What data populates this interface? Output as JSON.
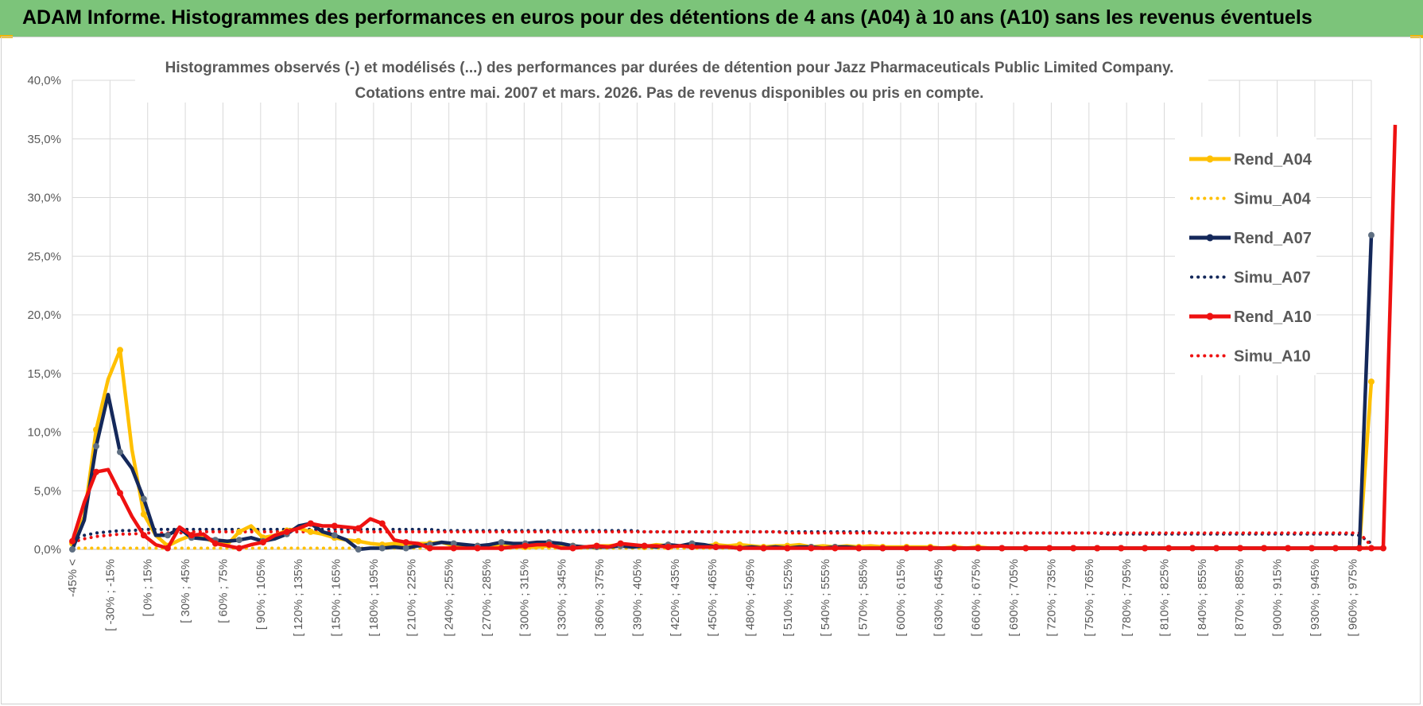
{
  "header": {
    "title": "ADAM Informe. Histogrammes des performances en euros pour des détentions de 4 ans (A04) à 10 ans (A10) sans les revenus éventuels"
  },
  "colors": {
    "banner": "#7cc47a",
    "accent": "#f2b600",
    "a04": "#ffc000",
    "a07": "#14285a",
    "a10": "#ee1111",
    "marker_a07": "#5f6f82"
  },
  "chart_data": {
    "type": "line",
    "title": "Histogrammes observés (-) et modélisés (...) des performances par durées de détention pour Jazz Pharmaceuticals Public Limited Company.",
    "subtitle": "Cotations entre mai. 2007 et mars. 2026. Pas de revenus disponibles ou pris en compte.",
    "ylim": [
      0,
      40
    ],
    "yticks": [
      "0,0%",
      "5,0%",
      "10,0%",
      "15,0%",
      "20,0%",
      "25,0%",
      "30,0%",
      "35,0%",
      "40,0%"
    ],
    "x_tick_labels": [
      "-45% <",
      "[ -30% ; -15%",
      "[ 0% ; 15%",
      "[ 30% ; 45%",
      "[ 60% ; 75%",
      "[ 90% ; 105%",
      "[ 120% ; 135%",
      "[ 150% ; 165%",
      "[ 180% ; 195%",
      "[ 210% ; 225%",
      "[ 240% ; 255%",
      "[ 270% ; 285%",
      "[ 300% ; 315%",
      "[ 330% ; 345%",
      "[ 360% ; 375%",
      "[ 390% ; 405%",
      "[ 420% ; 435%",
      "[ 450% ; 465%",
      "[ 480% ; 495%",
      "[ 510% ; 525%",
      "[ 540% ; 555%",
      "[ 570% ; 585%",
      "[ 600% ; 615%",
      "[ 630% ; 645%",
      "[ 660% ; 675%",
      "[ 690% ; 705%",
      "[ 720% ; 735%",
      "[ 750% ; 765%",
      "[ 780% ; 795%",
      "[ 810% ; 825%",
      "[ 840% ; 855%",
      "[ 870% ; 885%",
      "[ 900% ; 915%",
      "[ 930% ; 945%",
      "[ 960% ; 975%"
    ],
    "grid": true,
    "legend_position": "right",
    "series": [
      {
        "name": "Rend_A04",
        "style": "solid",
        "color": "#ffc000",
        "values": [
          0.5,
          2.8,
          10.2,
          14.5,
          17.0,
          8.5,
          3.0,
          1.2,
          0.3,
          0.8,
          1.2,
          1.0,
          0.6,
          0.4,
          1.5,
          2.0,
          1.0,
          1.2,
          1.6,
          1.8,
          1.5,
          1.3,
          1.0,
          0.8,
          0.7,
          0.5,
          0.4,
          0.5,
          0.4,
          0.5,
          0.5,
          0.6,
          0.3,
          0.2,
          0.3,
          0.2,
          0.3,
          0.2,
          0.2,
          0.2,
          0.3,
          0.2,
          0.3,
          0.2,
          0.3,
          0.3,
          0.4,
          0.3,
          0.2,
          0.4,
          0.3,
          0.3,
          0.4,
          0.3,
          0.4,
          0.3,
          0.4,
          0.3,
          0.2,
          0.3,
          0.3,
          0.4,
          0.2,
          0.3,
          0.2,
          0.3,
          0.2,
          0.3,
          0.2,
          0.2,
          0.2,
          0.2,
          0.2,
          0.1,
          0.2,
          0.1,
          0.2,
          0.1,
          0.1,
          0.1,
          0.1,
          0.1,
          0.1,
          0.1,
          0.1,
          0.1,
          0.1,
          0.1,
          0.1,
          0.1,
          0.1,
          0.1,
          0.1,
          0.1,
          0.1,
          0.1,
          0.1,
          0.1,
          0.1,
          0.1,
          0.1,
          0.1,
          0.1,
          0.1,
          0.1,
          0.1,
          0.1,
          0.1,
          0.1,
          14.3
        ]
      },
      {
        "name": "Simu_A04",
        "style": "dotted",
        "color": "#ffc000",
        "values": [
          0.1,
          0.1,
          0.1,
          0.1,
          0.1,
          0.1,
          0.1,
          0.1,
          0.1,
          0.1,
          0.1,
          0.1,
          0.1,
          0.1,
          0.1,
          0.1,
          0.1,
          0.1,
          0.1,
          0.1,
          0.1,
          0.1,
          0.1,
          0.1,
          0.1,
          0.1,
          0.1,
          0.1,
          0.1,
          0.1,
          0.1,
          0.1,
          0.1,
          0.1,
          0.1,
          0.1,
          0.1,
          0.1,
          0.1,
          0.1,
          0.1,
          0.1,
          0.1,
          0.1,
          0.1,
          0.1,
          0.1,
          0.1,
          0.1,
          0.1,
          0.1,
          0.1,
          0.1,
          0.1,
          0.1,
          0.1,
          0.1,
          0.1,
          0.1,
          0.1,
          0.1,
          0.1,
          0.1,
          0.1,
          0.1,
          0.1,
          0.1,
          0.1,
          0.1,
          0.1,
          0.1,
          0.1,
          0.1,
          0.1,
          0.1,
          0.1,
          0.1,
          0.1,
          0.1,
          0.1,
          0.1,
          0.1,
          0.1,
          0.1,
          0.1,
          0.1,
          0.1,
          0.1,
          0.1,
          0.1,
          0.1,
          0.1,
          0.1,
          0.1,
          0.1,
          0.1,
          0.1,
          0.1,
          0.1,
          0.1,
          0.1,
          0.1,
          0.1,
          0.1,
          0.1,
          0.1,
          0.1,
          0.1,
          0.1,
          0.2
        ]
      },
      {
        "name": "Rend_A07",
        "style": "solid",
        "color": "#14285a",
        "values": [
          0.0,
          2.5,
          8.8,
          13.2,
          8.3,
          6.9,
          4.3,
          1.2,
          1.2,
          1.8,
          1.0,
          0.9,
          0.8,
          0.7,
          0.8,
          1.0,
          0.7,
          0.9,
          1.3,
          2.0,
          2.2,
          1.5,
          1.2,
          0.8,
          0.0,
          0.1,
          0.1,
          0.2,
          0.1,
          0.3,
          0.4,
          0.6,
          0.5,
          0.4,
          0.3,
          0.4,
          0.6,
          0.5,
          0.5,
          0.6,
          0.6,
          0.5,
          0.3,
          0.2,
          0.2,
          0.2,
          0.3,
          0.2,
          0.3,
          0.2,
          0.4,
          0.3,
          0.5,
          0.4,
          0.2,
          0.2,
          0.1,
          0.2,
          0.1,
          0.2,
          0.1,
          0.2,
          0.2,
          0.1,
          0.2,
          0.2,
          0.1,
          0.1,
          0.1,
          0.1,
          0.1,
          0.1,
          0.1,
          0.1,
          0.1,
          0.1,
          0.1,
          0.1,
          0.1,
          0.1,
          0.1,
          0.1,
          0.1,
          0.1,
          0.1,
          0.1,
          0.1,
          0.1,
          0.1,
          0.1,
          0.1,
          0.1,
          0.1,
          0.1,
          0.1,
          0.1,
          0.1,
          0.1,
          0.1,
          0.1,
          0.1,
          0.1,
          0.1,
          0.1,
          0.1,
          0.1,
          0.1,
          0.1,
          0.1,
          26.8
        ]
      },
      {
        "name": "Simu_A07",
        "style": "dotted",
        "color": "#14285a",
        "values": [
          0.8,
          1.2,
          1.4,
          1.5,
          1.6,
          1.6,
          1.7,
          1.7,
          1.7,
          1.7,
          1.7,
          1.7,
          1.7,
          1.7,
          1.7,
          1.7,
          1.7,
          1.7,
          1.7,
          1.7,
          1.7,
          1.7,
          1.7,
          1.7,
          1.7,
          1.7,
          1.7,
          1.7,
          1.7,
          1.7,
          1.7,
          1.6,
          1.6,
          1.6,
          1.6,
          1.6,
          1.6,
          1.6,
          1.6,
          1.6,
          1.6,
          1.6,
          1.6,
          1.6,
          1.6,
          1.6,
          1.6,
          1.6,
          1.5,
          1.5,
          1.5,
          1.5,
          1.5,
          1.5,
          1.5,
          1.5,
          1.5,
          1.5,
          1.5,
          1.5,
          1.5,
          1.5,
          1.5,
          1.5,
          1.5,
          1.5,
          1.5,
          1.5,
          1.4,
          1.4,
          1.4,
          1.4,
          1.4,
          1.4,
          1.4,
          1.4,
          1.4,
          1.4,
          1.4,
          1.4,
          1.4,
          1.4,
          1.4,
          1.4,
          1.4,
          1.4,
          1.4,
          1.3,
          1.3,
          1.3,
          1.3,
          1.3,
          1.3,
          1.3,
          1.3,
          1.3,
          1.3,
          1.3,
          1.3,
          1.3,
          1.3,
          1.3,
          1.3,
          1.3,
          1.3,
          1.3,
          1.3,
          1.3,
          1.2,
          0.5
        ]
      },
      {
        "name": "Rend_A10",
        "style": "solid",
        "color": "#ee1111",
        "values": [
          0.7,
          4.0,
          6.6,
          6.8,
          4.8,
          2.8,
          1.2,
          0.4,
          0.1,
          1.9,
          1.2,
          1.3,
          0.5,
          0.3,
          0.1,
          0.4,
          0.6,
          1.2,
          1.5,
          1.8,
          2.2,
          2.0,
          2.0,
          1.9,
          1.8,
          2.6,
          2.2,
          0.8,
          0.6,
          0.5,
          0.1,
          0.1,
          0.1,
          0.1,
          0.1,
          0.1,
          0.1,
          0.2,
          0.3,
          0.4,
          0.4,
          0.1,
          0.1,
          0.2,
          0.3,
          0.2,
          0.5,
          0.4,
          0.3,
          0.3,
          0.2,
          0.3,
          0.2,
          0.2,
          0.2,
          0.2,
          0.1,
          0.1,
          0.1,
          0.1,
          0.1,
          0.1,
          0.1,
          0.1,
          0.1,
          0.1,
          0.1,
          0.1,
          0.1,
          0.1,
          0.1,
          0.1,
          0.1,
          0.1,
          0.1,
          0.1,
          0.1,
          0.1,
          0.1,
          0.1,
          0.1,
          0.1,
          0.1,
          0.1,
          0.1,
          0.1,
          0.1,
          0.1,
          0.1,
          0.1,
          0.1,
          0.1,
          0.1,
          0.1,
          0.1,
          0.1,
          0.1,
          0.1,
          0.1,
          0.1,
          0.1,
          0.1,
          0.1,
          0.1,
          0.1,
          0.1,
          0.1,
          0.1,
          0.1,
          0.1,
          0.1,
          36.2
        ]
      },
      {
        "name": "Simu_A10",
        "style": "dotted",
        "color": "#ee1111",
        "values": [
          0.6,
          0.9,
          1.1,
          1.2,
          1.3,
          1.3,
          1.4,
          1.4,
          1.4,
          1.4,
          1.5,
          1.5,
          1.5,
          1.5,
          1.5,
          1.5,
          1.5,
          1.5,
          1.5,
          1.5,
          1.5,
          1.5,
          1.5,
          1.5,
          1.5,
          1.5,
          1.5,
          1.5,
          1.5,
          1.5,
          1.5,
          1.5,
          1.5,
          1.5,
          1.5,
          1.5,
          1.5,
          1.5,
          1.5,
          1.5,
          1.5,
          1.5,
          1.5,
          1.5,
          1.5,
          1.5,
          1.5,
          1.5,
          1.5,
          1.5,
          1.5,
          1.5,
          1.5,
          1.5,
          1.5,
          1.5,
          1.5,
          1.5,
          1.5,
          1.5,
          1.4,
          1.4,
          1.4,
          1.4,
          1.4,
          1.4,
          1.4,
          1.4,
          1.4,
          1.4,
          1.4,
          1.4,
          1.4,
          1.4,
          1.4,
          1.4,
          1.4,
          1.4,
          1.4,
          1.4,
          1.4,
          1.4,
          1.4,
          1.4,
          1.4,
          1.4,
          1.4,
          1.4,
          1.4,
          1.4,
          1.4,
          1.4,
          1.4,
          1.4,
          1.4,
          1.4,
          1.4,
          1.4,
          1.4,
          1.4,
          1.4,
          1.4,
          1.4,
          1.4,
          1.4,
          1.4,
          1.4,
          1.4,
          1.4,
          0.3
        ]
      }
    ]
  }
}
